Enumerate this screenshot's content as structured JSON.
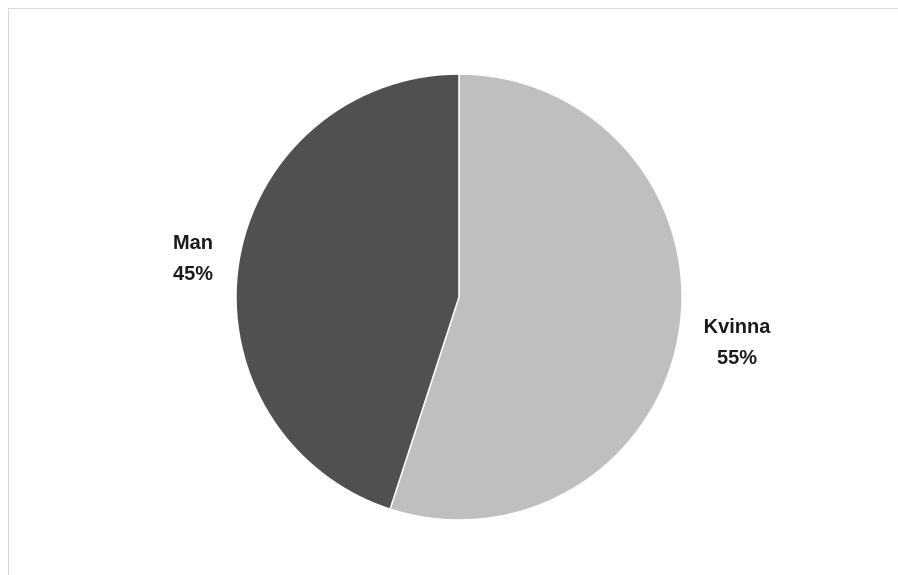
{
  "chart_data": {
    "type": "pie",
    "categories": [
      "Kvinna",
      "Man"
    ],
    "values": [
      55,
      45
    ],
    "value_labels": [
      "55%",
      "45%"
    ],
    "colors": [
      "#bfbfbf",
      "#505050"
    ],
    "legend": "none",
    "start_angle_deg": 0,
    "direction": "clockwise"
  }
}
